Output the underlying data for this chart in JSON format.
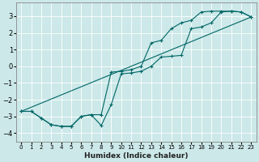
{
  "xlabel": "Humidex (Indice chaleur)",
  "background_color": "#cce8e8",
  "grid_color": "#ffffff",
  "line_color": "#006666",
  "xlim": [
    -0.5,
    23.5
  ],
  "ylim": [
    -4.5,
    3.8
  ],
  "xticks": [
    0,
    1,
    2,
    3,
    4,
    5,
    6,
    7,
    8,
    9,
    10,
    11,
    12,
    13,
    14,
    15,
    16,
    17,
    18,
    19,
    20,
    21,
    22,
    23
  ],
  "yticks": [
    -4,
    -3,
    -2,
    -1,
    0,
    1,
    2,
    3
  ],
  "curve1_x": [
    0,
    1,
    2,
    3,
    4,
    5,
    6,
    7,
    8,
    9,
    10,
    11,
    12,
    13,
    14,
    15,
    16,
    17,
    18,
    19,
    20,
    21,
    22,
    23
  ],
  "curve1_y": [
    -2.7,
    -2.7,
    -3.1,
    -3.5,
    -3.6,
    -3.6,
    -3.0,
    -2.9,
    -2.9,
    -0.35,
    -0.3,
    -0.2,
    0.0,
    1.4,
    1.55,
    2.25,
    2.6,
    2.75,
    3.25,
    3.3,
    3.3,
    3.3,
    3.25,
    2.95
  ],
  "curve2_x": [
    0,
    1,
    2,
    3,
    4,
    5,
    6,
    7,
    8,
    9,
    10,
    11,
    12,
    13,
    14,
    15,
    16,
    17,
    18,
    19,
    20,
    21,
    22,
    23
  ],
  "curve2_y": [
    -2.7,
    -2.7,
    -3.1,
    -3.5,
    -3.6,
    -3.6,
    -3.0,
    -2.9,
    -3.55,
    -2.3,
    -0.45,
    -0.4,
    -0.3,
    0.0,
    0.55,
    0.6,
    0.65,
    2.25,
    2.35,
    2.6,
    3.25,
    3.3,
    3.25,
    2.95
  ],
  "curve3_x": [
    0,
    23
  ],
  "curve3_y": [
    -2.7,
    2.95
  ]
}
